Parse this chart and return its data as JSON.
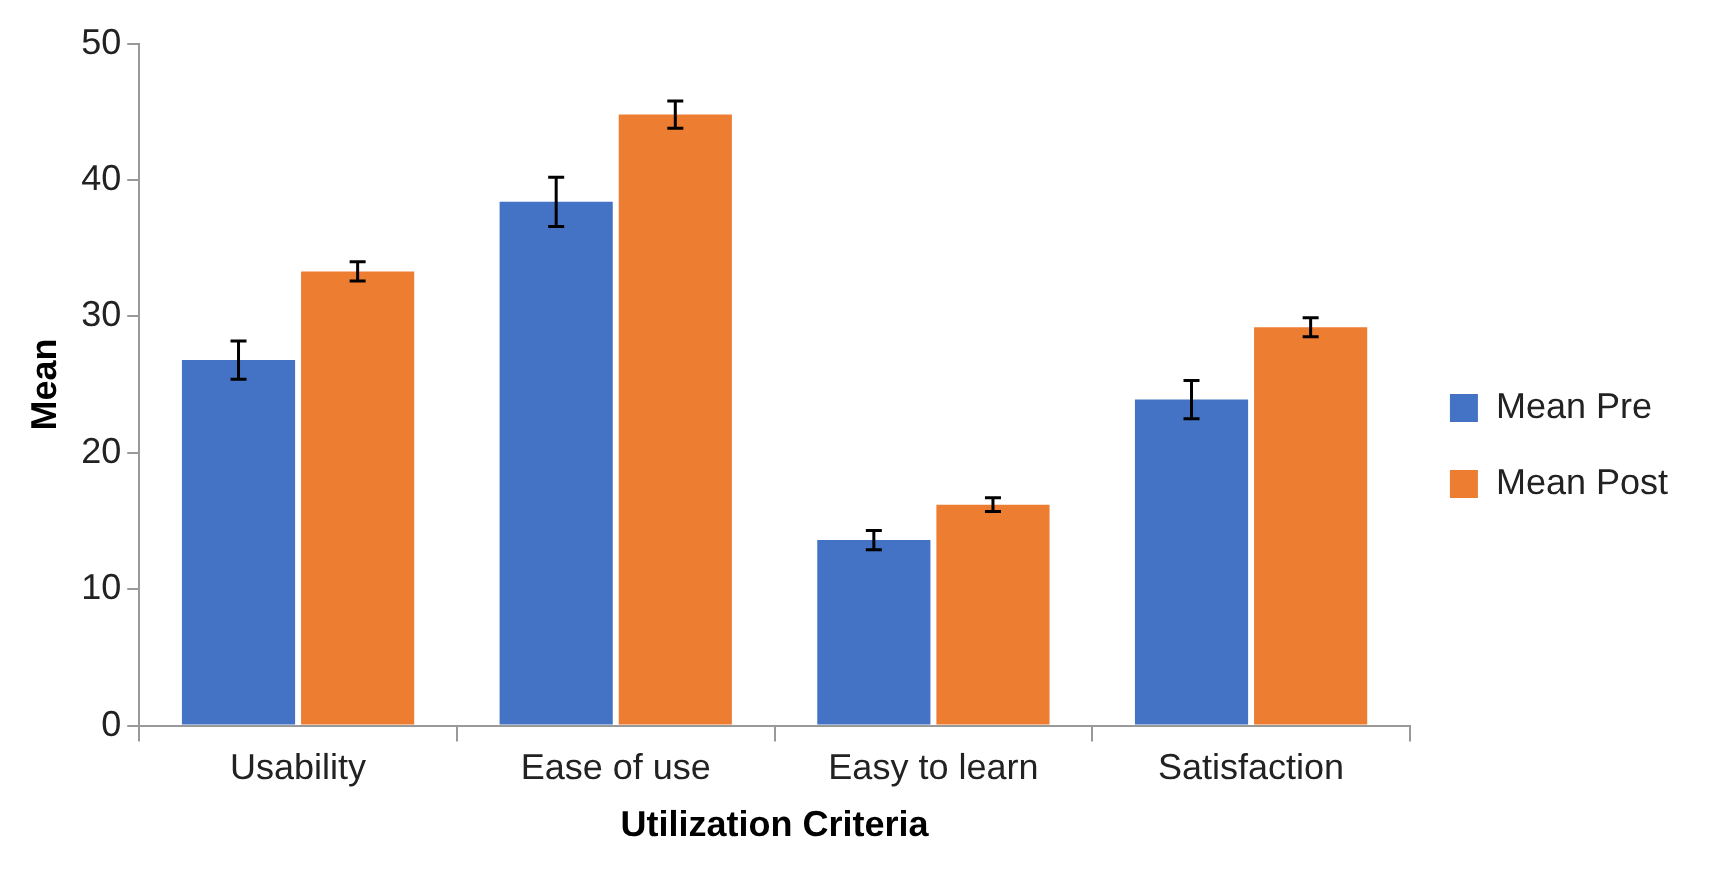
{
  "chart_data": {
    "type": "bar",
    "xlabel": "Utilization Criteria",
    "ylabel": "Mean",
    "categories": [
      "Usability",
      "Ease of use",
      "Easy to learn",
      "Satisfaction"
    ],
    "series": [
      {
        "name": "Mean Pre",
        "color": "#4472c4",
        "values": [
          26.8,
          38.4,
          13.6,
          23.9
        ],
        "errors": [
          1.4,
          1.8,
          0.7,
          1.4
        ]
      },
      {
        "name": "Mean Post",
        "color": "#ed7d31",
        "values": [
          33.3,
          44.8,
          16.2,
          29.2
        ],
        "errors": [
          0.7,
          1.0,
          0.5,
          0.7
        ]
      }
    ],
    "ylim": [
      0,
      50
    ],
    "yticks": [
      0,
      10,
      20,
      30,
      40,
      50
    ],
    "legend": "right"
  }
}
